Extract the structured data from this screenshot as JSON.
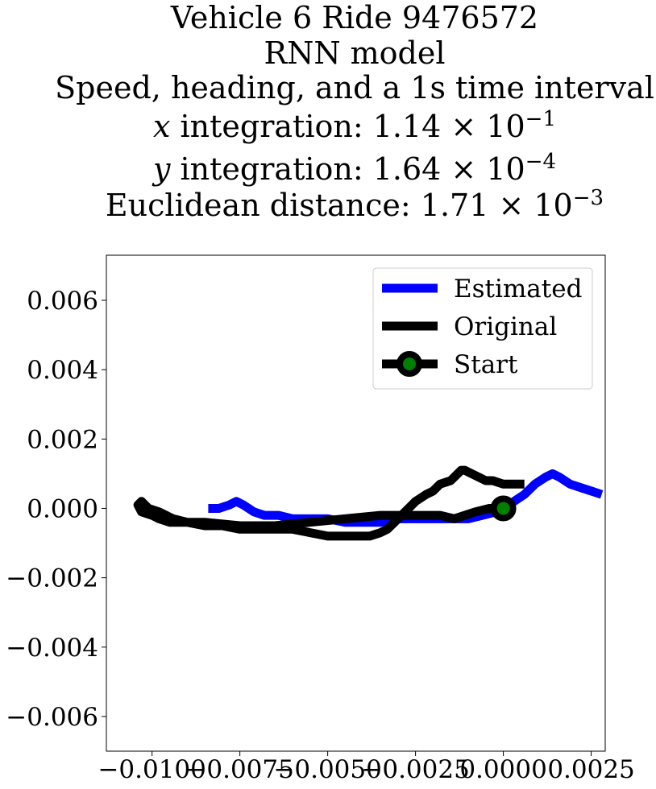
{
  "chart_data": {
    "type": "line",
    "title": [
      {
        "parts": [
          {
            "text": "Vehicle 6 Ride 9476572"
          }
        ]
      },
      {
        "parts": [
          {
            "text": "RNN model"
          }
        ]
      },
      {
        "parts": [
          {
            "text": "Speed, heading, and a 1s time interval"
          }
        ]
      },
      {
        "parts": [
          {
            "text": "x",
            "italic": true
          },
          {
            "text": " integration: 1.14 × 10"
          },
          {
            "text": "−1",
            "sup": true
          }
        ]
      },
      {
        "parts": [
          {
            "text": "y",
            "italic": true
          },
          {
            "text": " integration: 1.64 × 10"
          },
          {
            "text": "−4",
            "sup": true
          }
        ]
      },
      {
        "parts": [
          {
            "text": "Euclidean distance: 1.71 × 10"
          },
          {
            "text": "−3",
            "sup": true
          }
        ]
      }
    ],
    "xlabel": "",
    "ylabel": "",
    "xlim": [
      -0.0113,
      0.0029
    ],
    "ylim": [
      -0.007,
      0.0073
    ],
    "xticks": [
      -0.01,
      -0.0075,
      -0.005,
      -0.0025,
      0.0,
      0.0025
    ],
    "xtick_labels": [
      "−0.0100",
      "−0.0075",
      "−0.0050",
      "−0.0025",
      "0.0000",
      "0.0025"
    ],
    "yticks": [
      0.006,
      0.004,
      0.002,
      0.0,
      -0.002,
      -0.004,
      -0.006
    ],
    "ytick_labels": [
      "0.006",
      "0.004",
      "0.002",
      "0.000",
      "−0.002",
      "−0.004",
      "−0.006"
    ],
    "grid": false,
    "legend": {
      "position": "upper-right"
    },
    "series": [
      {
        "name": "Estimated",
        "color": "#0000ff",
        "x": [
          -0.0084,
          -0.0081,
          -0.0078,
          -0.0076,
          -0.0074,
          -0.0071,
          -0.0068,
          -0.0064,
          -0.006,
          -0.0055,
          -0.005,
          -0.0045,
          -0.004,
          -0.0035,
          -0.003,
          -0.0025,
          -0.002,
          -0.0015,
          -0.001,
          -0.0006,
          -0.0002,
          0.0,
          0.0003,
          0.0006,
          0.0009,
          0.0012,
          0.0014,
          0.0016,
          0.0019,
          0.0022,
          0.0025,
          0.0028
        ],
        "y": [
          0.0,
          0.0,
          0.0001,
          0.0002,
          0.0001,
          -0.0001,
          -0.0002,
          -0.0002,
          -0.0003,
          -0.0003,
          -0.0003,
          -0.0004,
          -0.0004,
          -0.0004,
          -0.0003,
          -0.0003,
          -0.0003,
          -0.0003,
          -0.0003,
          -0.0002,
          -0.0001,
          0.0,
          0.0002,
          0.0004,
          0.0007,
          0.0009,
          0.001,
          0.0009,
          0.0007,
          0.0006,
          0.0005,
          0.0004
        ]
      },
      {
        "name": "Original",
        "color": "#000000",
        "x": [
          0.0006,
          0.0003,
          0.0,
          -0.0003,
          -0.0005,
          -0.0007,
          -0.0009,
          -0.0011,
          -0.0012,
          -0.0013,
          -0.0015,
          -0.0018,
          -0.002,
          -0.0022,
          -0.0025,
          -0.0027,
          -0.0029,
          -0.0031,
          -0.0033,
          -0.0035,
          -0.0038,
          -0.004,
          -0.0045,
          -0.005,
          -0.0055,
          -0.006,
          -0.0065,
          -0.007,
          -0.0075,
          -0.008,
          -0.0085,
          -0.009,
          -0.0095,
          -0.0098,
          -0.01,
          -0.0103,
          -0.0104,
          -0.0103,
          -0.0101,
          -0.0098,
          -0.0094,
          -0.009,
          -0.0085,
          -0.0075,
          -0.0065,
          -0.0055,
          -0.0045,
          -0.0035,
          -0.0025,
          -0.0018,
          -0.0014,
          -0.0011,
          -0.0008,
          -0.0004,
          0.0
        ],
        "y": [
          0.0007,
          0.0007,
          0.0007,
          0.0008,
          0.0008,
          0.0009,
          0.001,
          0.0011,
          0.0011,
          0.001,
          0.0008,
          0.0007,
          0.0005,
          0.0004,
          0.0002,
          0.0,
          -0.0002,
          -0.0004,
          -0.0006,
          -0.0007,
          -0.0008,
          -0.0008,
          -0.0008,
          -0.0008,
          -0.0007,
          -0.0006,
          -0.0006,
          -0.0006,
          -0.0006,
          -0.0005,
          -0.0005,
          -0.0004,
          -0.0004,
          -0.0003,
          -0.0002,
          -0.0001,
          0.0001,
          0.0002,
          0.0,
          -0.0001,
          -0.0003,
          -0.0004,
          -0.0004,
          -0.0005,
          -0.0005,
          -0.0004,
          -0.0003,
          -0.0002,
          -0.0002,
          -0.0002,
          -0.0003,
          -0.0002,
          -0.0001,
          0.0,
          0.0
        ]
      }
    ],
    "start_marker": {
      "name": "Start",
      "x": 0.0,
      "y": 0.0,
      "edge_color": "#000000",
      "fill_color": "#008000"
    }
  }
}
